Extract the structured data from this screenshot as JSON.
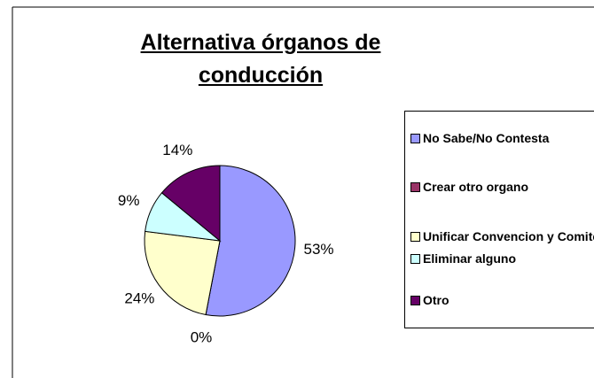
{
  "chart_data": {
    "type": "pie",
    "title": "Alternativa órganos de conducción",
    "categories": [
      "No Sabe/No Contesta",
      "Crear otro organo",
      "Unificar Convencion y Comite",
      "Eliminar alguno",
      "Otro"
    ],
    "values": [
      53,
      0,
      24,
      9,
      14
    ],
    "value_labels": [
      "53%",
      "0%",
      "24%",
      "9%",
      "14%"
    ],
    "colors": [
      "#9999ff",
      "#993366",
      "#ffffcc",
      "#ccffff",
      "#660066"
    ],
    "legend": "right"
  }
}
